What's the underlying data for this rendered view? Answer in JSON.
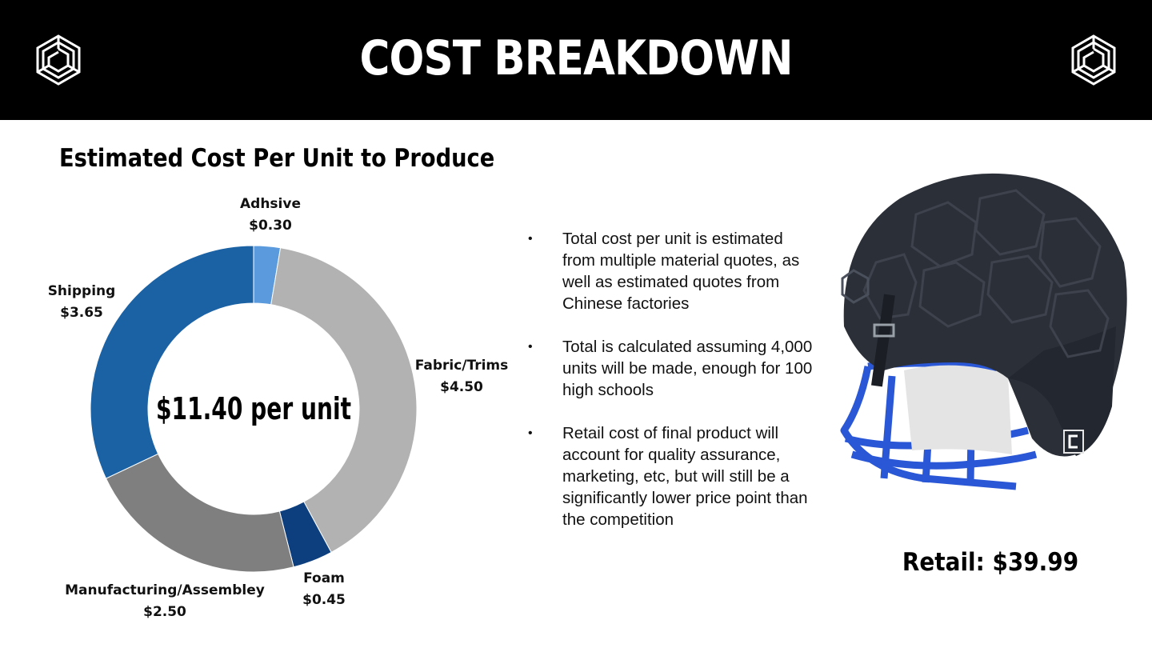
{
  "header": {
    "title": "COST BREAKDOWN"
  },
  "subtitle": "Estimated Cost Per Unit to Produce",
  "chart_data": {
    "type": "pie",
    "title": "Estimated Cost Per Unit to Produce",
    "center_label": "$11.40 per unit",
    "slices": [
      {
        "label": "Adhsive",
        "value": 0.3,
        "value_label": "$0.30",
        "color": "#5b9bdd"
      },
      {
        "label": "Fabric/Trims",
        "value": 4.5,
        "value_label": "$4.50",
        "color": "#b2b2b2"
      },
      {
        "label": "Foam",
        "value": 0.45,
        "value_label": "$0.45",
        "color": "#0d3f7f"
      },
      {
        "label": "Manufacturing/Assembley",
        "value": 2.5,
        "value_label": "$2.50",
        "color": "#7f7f7f"
      },
      {
        "label": "Shipping",
        "value": 3.65,
        "value_label": "$3.65",
        "color": "#1b62a5"
      }
    ],
    "total": 11.4
  },
  "bullets": [
    "Total cost per unit is estimated from multiple material quotes, as well as estimated quotes from Chinese factories",
    "Total is calculated assuming 4,000 units will be made, enough for 100 high schools",
    "Retail cost of final product will account for quality assurance, marketing, etc, but will still be a significantly lower price point than the competition"
  ],
  "bullet_symbol": "•",
  "retail": "Retail: $39.99",
  "colors": {
    "header_bg": "#000000",
    "facemask": "#2a57d6",
    "shell": "#2b2f38"
  },
  "icons": {
    "logo": "hexagon-maze-logo-icon"
  }
}
